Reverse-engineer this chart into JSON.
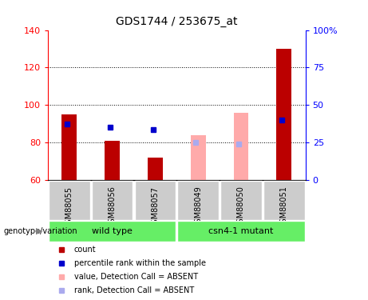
{
  "title": "GDS1744 / 253675_at",
  "samples": [
    "GSM88055",
    "GSM88056",
    "GSM88057",
    "GSM88049",
    "GSM88050",
    "GSM88051"
  ],
  "ylim_left": [
    60,
    140
  ],
  "ylim_right": [
    0,
    100
  ],
  "yticks_left": [
    60,
    80,
    100,
    120,
    140
  ],
  "yticks_right": [
    0,
    25,
    50,
    75,
    100
  ],
  "ytick_labels_right": [
    "0",
    "25",
    "50",
    "75",
    "100%"
  ],
  "count_values": [
    95,
    81,
    72,
    null,
    null,
    130
  ],
  "absent_value_bars": [
    null,
    null,
    null,
    84,
    96,
    null
  ],
  "rank_markers_left": [
    90,
    88,
    87,
    null,
    null,
    92
  ],
  "absent_rank_left": [
    null,
    null,
    null,
    80,
    79,
    null
  ],
  "bar_width": 0.35,
  "color_count_present": "#bb0000",
  "color_count_absent": "#ffaaaa",
  "color_rank_present": "#0000cc",
  "color_rank_absent": "#aaaaee",
  "group_wt_range": [
    0,
    3
  ],
  "group_csn_range": [
    3,
    6
  ],
  "group_wt_label": "wild type",
  "group_csn_label": "csn4-1 mutant",
  "group_color": "#66ee66",
  "sample_box_color": "#cccccc",
  "legend_items": [
    {
      "label": "count",
      "color": "#bb0000",
      "alpha": 1.0
    },
    {
      "label": "percentile rank within the sample",
      "color": "#0000cc",
      "alpha": 1.0
    },
    {
      "label": "value, Detection Call = ABSENT",
      "color": "#ffaaaa",
      "alpha": 1.0
    },
    {
      "label": "rank, Detection Call = ABSENT",
      "color": "#aaaaee",
      "alpha": 1.0
    }
  ],
  "xlabel_label": "genotype/variation",
  "dotted_gridlines": [
    80,
    100,
    120
  ]
}
